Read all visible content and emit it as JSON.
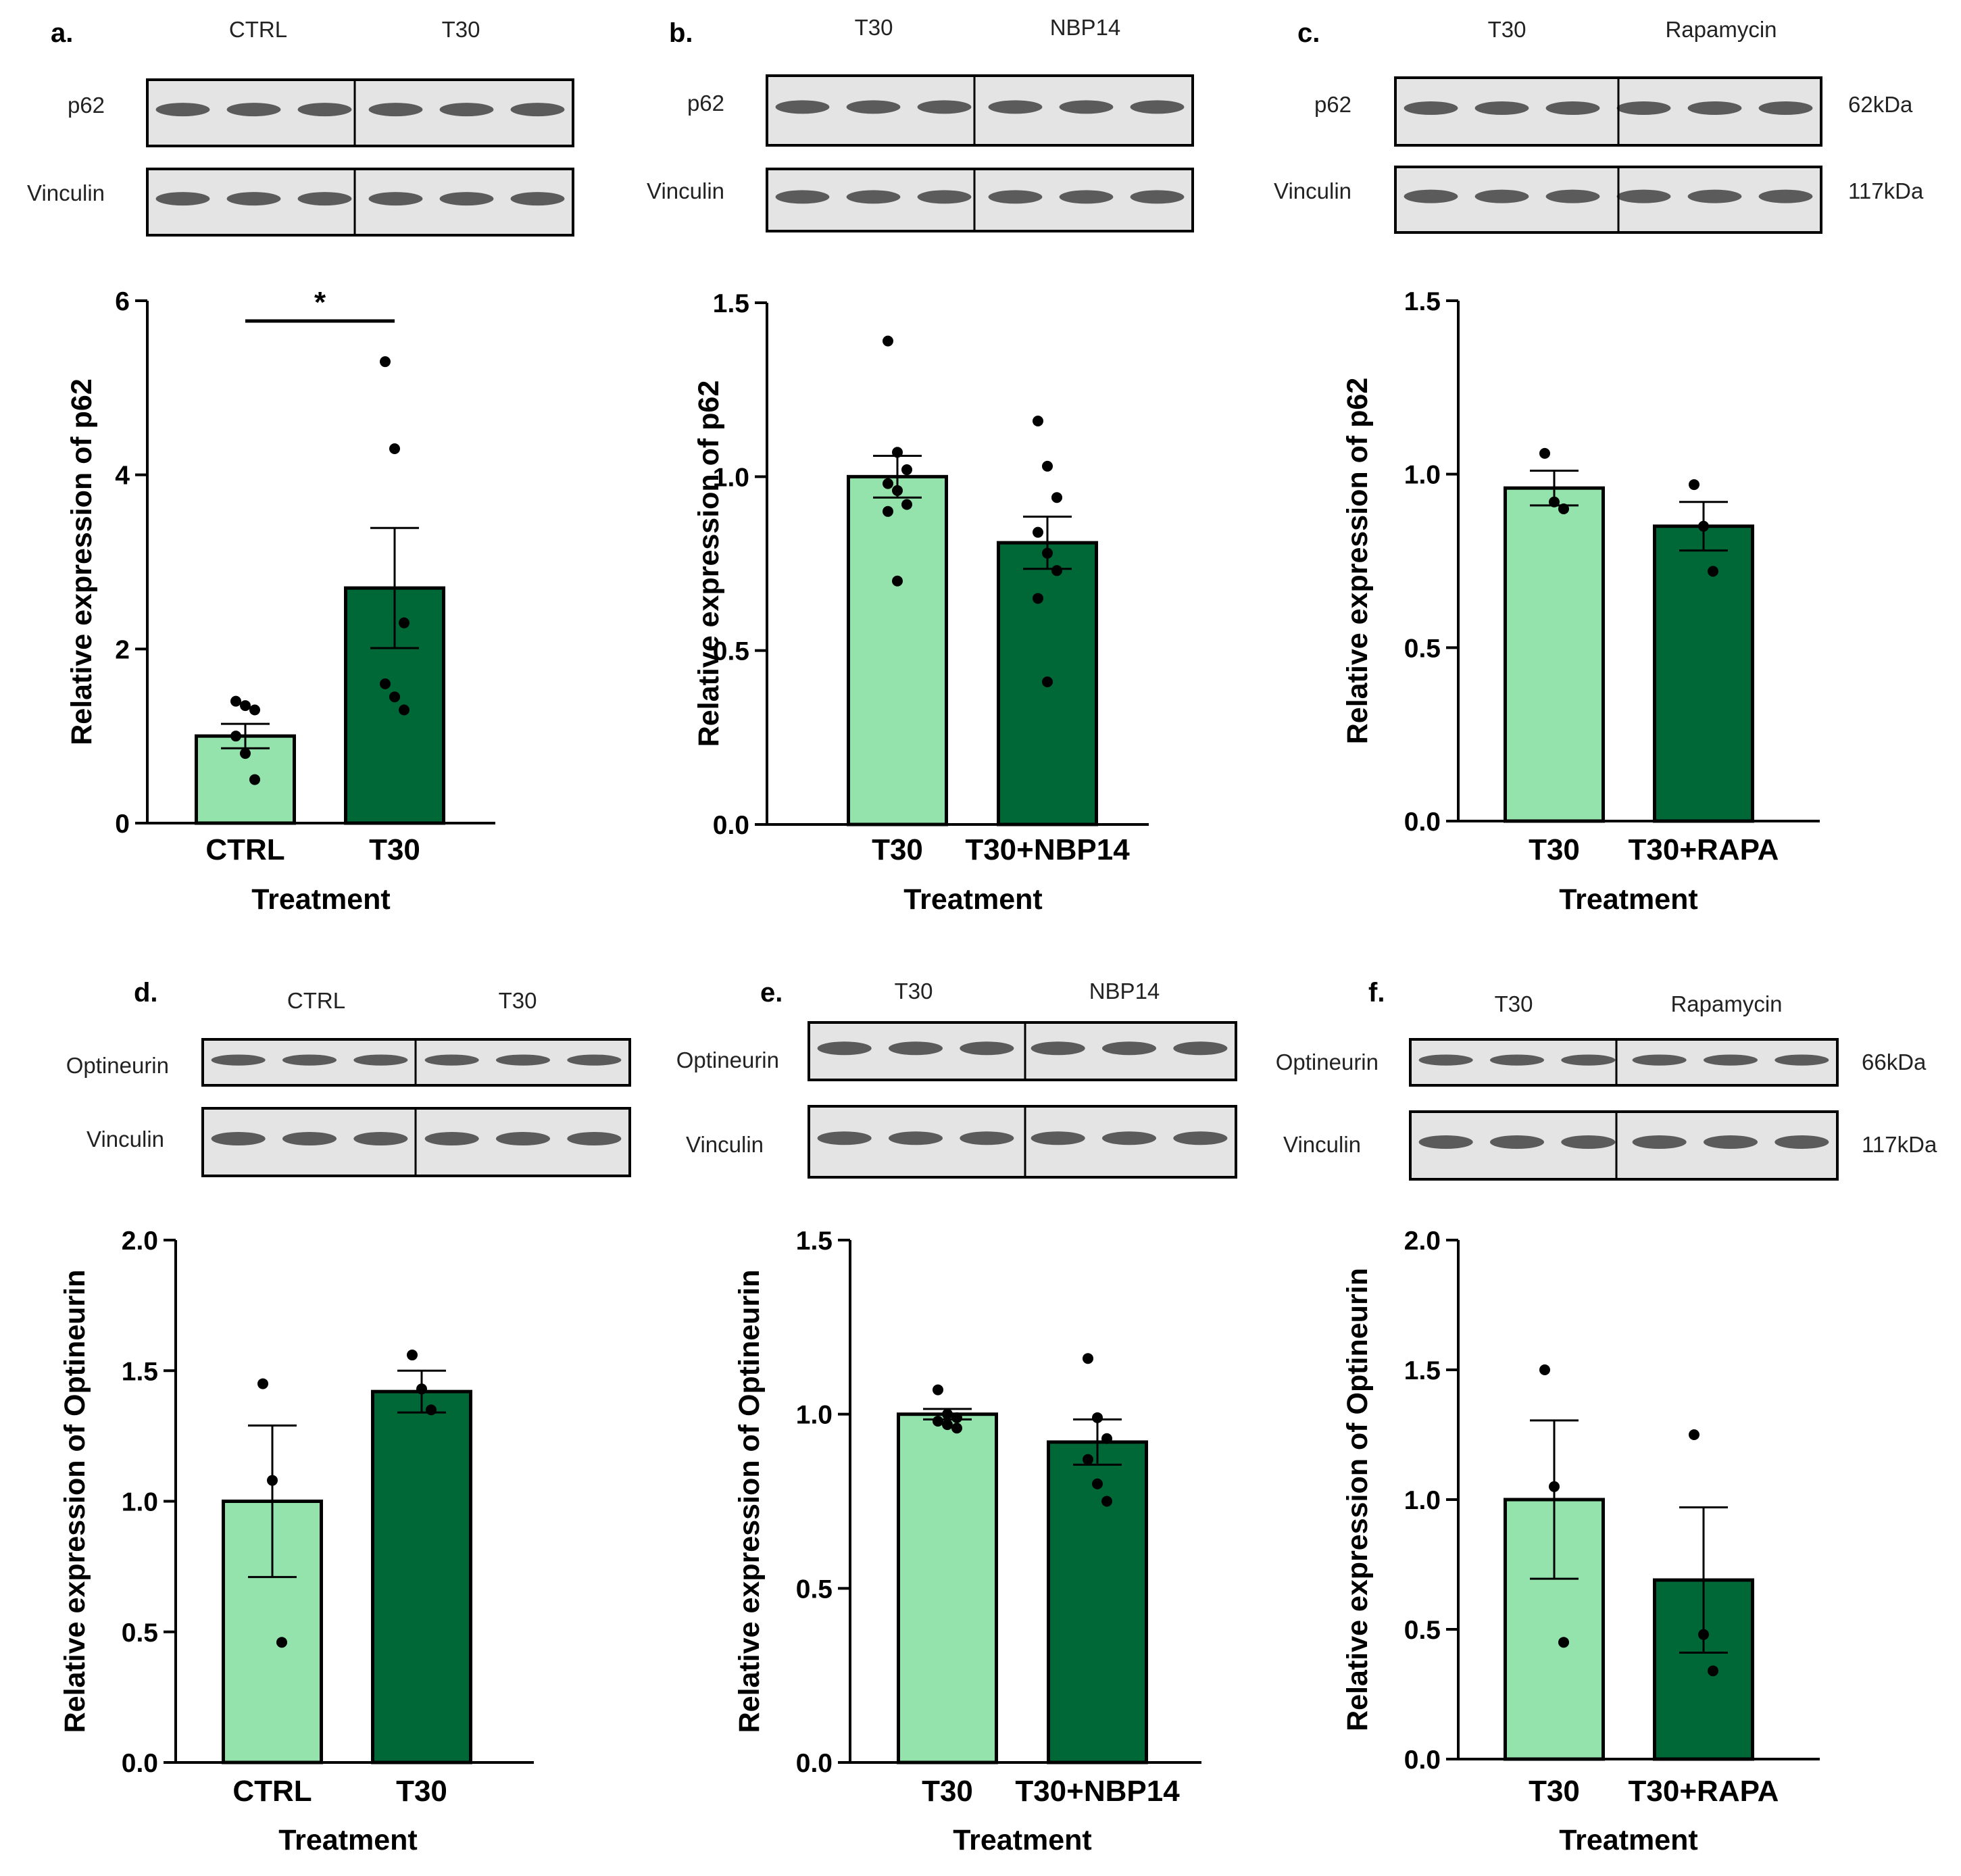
{
  "colors": {
    "light": "#94e2ac",
    "dark": "#006837",
    "axis": "#000000",
    "blotBg": "#e4e4e4",
    "band": "#2e2e2e"
  },
  "chart_data": [
    {
      "panel": "a.",
      "type": "bar",
      "blot_labels": [
        "CTRL",
        "T30"
      ],
      "blot_rows": [
        "p62",
        "Vinculin"
      ],
      "kda": [],
      "ylabel": "Relative expression of p62",
      "xlabel": "Treatment",
      "ylim": [
        0,
        6
      ],
      "yticks": [
        "0",
        "2",
        "4",
        "6"
      ],
      "ytick_values": [
        0,
        2,
        4,
        6
      ],
      "categories": [
        "CTRL",
        "T30"
      ],
      "values": [
        1.0,
        2.7
      ],
      "sem": [
        0.14,
        0.69
      ],
      "points": [
        [
          1.4,
          1.35,
          1.3,
          1.0,
          0.8,
          0.5
        ],
        [
          5.3,
          4.3,
          2.3,
          1.6,
          1.45,
          1.3
        ]
      ],
      "significance": "*"
    },
    {
      "panel": "b.",
      "type": "bar",
      "blot_labels": [
        "T30",
        "NBP14"
      ],
      "blot_rows": [
        "p62",
        "Vinculin"
      ],
      "kda": [],
      "ylabel": "Relative expression of p62",
      "xlabel": "Treatment",
      "ylim": [
        0,
        1.5
      ],
      "yticks": [
        "0.0",
        "0.5",
        "1.0",
        "1.5"
      ],
      "ytick_values": [
        0,
        0.5,
        1.0,
        1.5
      ],
      "categories": [
        "T30",
        "T30+NBP14"
      ],
      "values": [
        1.0,
        0.81
      ],
      "sem": [
        0.06,
        0.075
      ],
      "points": [
        [
          1.39,
          1.07,
          1.02,
          0.98,
          0.96,
          0.92,
          0.9,
          0.7
        ],
        [
          1.16,
          1.03,
          0.94,
          0.84,
          0.78,
          0.73,
          0.65,
          0.41
        ]
      ]
    },
    {
      "panel": "c.",
      "type": "bar",
      "blot_labels": [
        "T30",
        "Rapamycin"
      ],
      "blot_rows": [
        "p62",
        "Vinculin"
      ],
      "kda": [
        "62kDa",
        "117kDa"
      ],
      "ylabel": "Relative expression of p62",
      "xlabel": "Treatment",
      "ylim": [
        0,
        1.5
      ],
      "yticks": [
        "0.0",
        "0.5",
        "1.0",
        "1.5"
      ],
      "ytick_values": [
        0,
        0.5,
        1.0,
        1.5
      ],
      "categories": [
        "T30",
        "T30+RAPA"
      ],
      "values": [
        0.96,
        0.85
      ],
      "sem": [
        0.05,
        0.07
      ],
      "points": [
        [
          1.06,
          0.92,
          0.9
        ],
        [
          0.97,
          0.85,
          0.72
        ]
      ]
    },
    {
      "panel": "d.",
      "type": "bar",
      "blot_labels": [
        "CTRL",
        "T30"
      ],
      "blot_rows": [
        "Optineurin",
        "Vinculin"
      ],
      "kda": [],
      "ylabel": "Relative expression of Optineurin",
      "xlabel": "Treatment",
      "ylim": [
        0,
        2.0
      ],
      "yticks": [
        "0.0",
        "0.5",
        "1.0",
        "1.5",
        "2.0"
      ],
      "ytick_values": [
        0,
        0.5,
        1.0,
        1.5,
        2.0
      ],
      "categories": [
        "CTRL",
        "T30"
      ],
      "values": [
        1.0,
        1.42
      ],
      "sem": [
        0.29,
        0.08
      ],
      "points": [
        [
          1.45,
          1.08,
          0.46
        ],
        [
          1.56,
          1.43,
          1.35
        ]
      ]
    },
    {
      "panel": "e.",
      "type": "bar",
      "blot_labels": [
        "T30",
        "NBP14"
      ],
      "blot_rows": [
        "Optineurin",
        "Vinculin"
      ],
      "kda": [],
      "ylabel": "Relative expression of Optineurin",
      "xlabel": "Treatment",
      "ylim": [
        0,
        1.5
      ],
      "yticks": [
        "0.0",
        "0.5",
        "1.0",
        "1.5"
      ],
      "ytick_values": [
        0,
        0.5,
        1.0,
        1.5
      ],
      "categories": [
        "T30",
        "T30+NBP14"
      ],
      "values": [
        1.0,
        0.92
      ],
      "sem": [
        0.015,
        0.065
      ],
      "points": [
        [
          1.07,
          1.0,
          0.99,
          0.98,
          0.97,
          0.96
        ],
        [
          1.16,
          0.99,
          0.93,
          0.87,
          0.8,
          0.75
        ]
      ]
    },
    {
      "panel": "f.",
      "type": "bar",
      "blot_labels": [
        "T30",
        "Rapamycin"
      ],
      "blot_rows": [
        "Optineurin",
        "Vinculin"
      ],
      "kda": [
        "66kDa",
        "117kDa"
      ],
      "ylabel": "Relative expression of Optineurin",
      "xlabel": "Treatment",
      "ylim": [
        0,
        2.0
      ],
      "yticks": [
        "0.0",
        "0.5",
        "1.0",
        "1.5",
        "2.0"
      ],
      "ytick_values": [
        0,
        0.5,
        1.0,
        1.5,
        2.0
      ],
      "categories": [
        "T30",
        "T30+RAPA"
      ],
      "values": [
        1.0,
        0.69
      ],
      "sem": [
        0.305,
        0.28
      ],
      "points": [
        [
          1.5,
          1.05,
          0.45
        ],
        [
          1.25,
          0.48,
          0.34
        ]
      ]
    }
  ]
}
